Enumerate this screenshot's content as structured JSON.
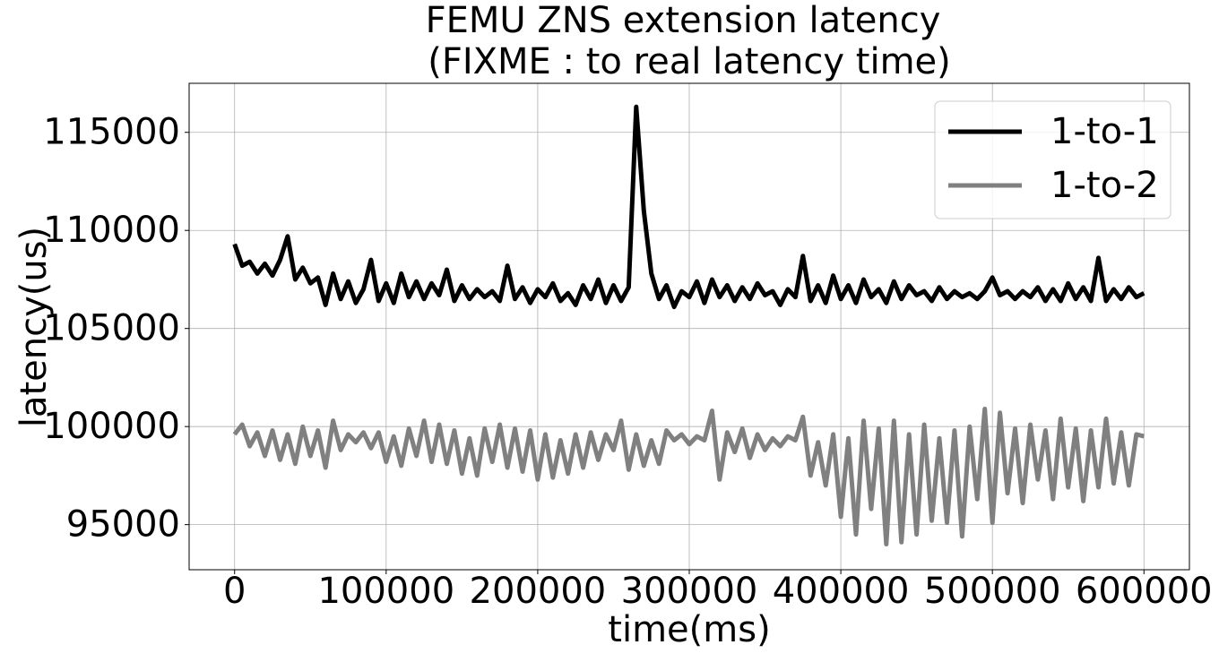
{
  "chart_data": {
    "type": "line",
    "title": [
      "FEMU ZNS extension latency",
      "(FIXME : to real latency time)"
    ],
    "xlabel": "time(ms)",
    "ylabel": "latency(us)",
    "x": [
      0,
      5000,
      10000,
      15000,
      20000,
      25000,
      30000,
      35000,
      40000,
      45000,
      50000,
      55000,
      60000,
      65000,
      70000,
      75000,
      80000,
      85000,
      90000,
      95000,
      100000,
      105000,
      110000,
      115000,
      120000,
      125000,
      130000,
      135000,
      140000,
      145000,
      150000,
      155000,
      160000,
      165000,
      170000,
      175000,
      180000,
      185000,
      190000,
      195000,
      200000,
      205000,
      210000,
      215000,
      220000,
      225000,
      230000,
      235000,
      240000,
      245000,
      250000,
      255000,
      260000,
      265000,
      270000,
      275000,
      280000,
      285000,
      290000,
      295000,
      300000,
      305000,
      310000,
      315000,
      320000,
      325000,
      330000,
      335000,
      340000,
      345000,
      350000,
      355000,
      360000,
      365000,
      370000,
      375000,
      380000,
      385000,
      390000,
      395000,
      400000,
      405000,
      410000,
      415000,
      420000,
      425000,
      430000,
      435000,
      440000,
      445000,
      450000,
      455000,
      460000,
      465000,
      470000,
      475000,
      480000,
      485000,
      490000,
      495000,
      500000,
      505000,
      510000,
      515000,
      520000,
      525000,
      530000,
      535000,
      540000,
      545000,
      550000,
      555000,
      560000,
      565000,
      570000,
      575000,
      580000,
      585000,
      590000,
      595000,
      600000
    ],
    "series": [
      {
        "name": "1-to-1",
        "color": "#000000",
        "values": [
          109300,
          108200,
          108400,
          107800,
          108300,
          107700,
          108500,
          109700,
          107500,
          108100,
          107300,
          107600,
          106200,
          107800,
          106500,
          107400,
          106300,
          107000,
          108500,
          106400,
          107300,
          106300,
          107800,
          106600,
          107400,
          106500,
          107300,
          106700,
          108000,
          106400,
          107200,
          106500,
          107000,
          106600,
          106900,
          106400,
          108200,
          106500,
          107100,
          106300,
          107000,
          106600,
          107300,
          106400,
          106800,
          106200,
          107200,
          106500,
          107500,
          106300,
          107200,
          106400,
          107100,
          116300,
          111000,
          107800,
          106500,
          107200,
          106100,
          106900,
          106600,
          107400,
          106300,
          107500,
          106600,
          107200,
          106400,
          107100,
          106500,
          107300,
          106700,
          106900,
          106200,
          107000,
          106600,
          108700,
          106400,
          107200,
          106300,
          107700,
          106500,
          107200,
          106300,
          107500,
          106600,
          107000,
          106300,
          107400,
          106500,
          107200,
          106700,
          106900,
          106400,
          107100,
          106500,
          106900,
          106600,
          106800,
          106500,
          106900,
          107600,
          106700,
          106900,
          106500,
          106900,
          106600,
          107100,
          106400,
          107000,
          106400,
          107300,
          106500,
          107100,
          106400,
          108600,
          106400,
          107000,
          106500,
          107100,
          106600,
          106800
        ]
      },
      {
        "name": "1-to-2",
        "color": "#808080",
        "values": [
          99600,
          100100,
          99000,
          99700,
          98500,
          99800,
          98300,
          99600,
          98100,
          100000,
          98500,
          99800,
          97900,
          100300,
          98800,
          99600,
          99200,
          99700,
          98900,
          99700,
          98200,
          99500,
          98000,
          99900,
          98500,
          100300,
          98200,
          100100,
          98100,
          99800,
          97600,
          99400,
          97500,
          99900,
          98200,
          100100,
          97900,
          99900,
          97700,
          99800,
          97300,
          99600,
          97400,
          99300,
          97600,
          99600,
          97900,
          99700,
          98300,
          99600,
          98800,
          100300,
          97800,
          99600,
          98000,
          99300,
          98100,
          99800,
          99300,
          99600,
          99100,
          99500,
          99300,
          100800,
          97300,
          99700,
          98700,
          99900,
          98400,
          99600,
          98800,
          99400,
          99000,
          99500,
          99300,
          100500,
          97500,
          99200,
          97000,
          99600,
          95400,
          99400,
          94500,
          100300,
          95800,
          99900,
          94000,
          100300,
          94100,
          99600,
          94500,
          100100,
          95200,
          99400,
          95100,
          99800,
          94400,
          100000,
          96300,
          100900,
          95100,
          100700,
          96600,
          99900,
          96100,
          100100,
          97300,
          99800,
          96300,
          100400,
          96900,
          99900,
          96200,
          99800,
          96900,
          100400,
          97100,
          99700,
          97000,
          99600,
          99500
        ]
      }
    ],
    "xlim": [
      -30000,
      630000
    ],
    "ylim": [
      92700,
      117500
    ],
    "xticks": [
      0,
      100000,
      200000,
      300000,
      400000,
      500000,
      600000
    ],
    "yticks": [
      95000,
      100000,
      105000,
      110000,
      115000
    ],
    "grid": true,
    "legend": "upper right"
  }
}
